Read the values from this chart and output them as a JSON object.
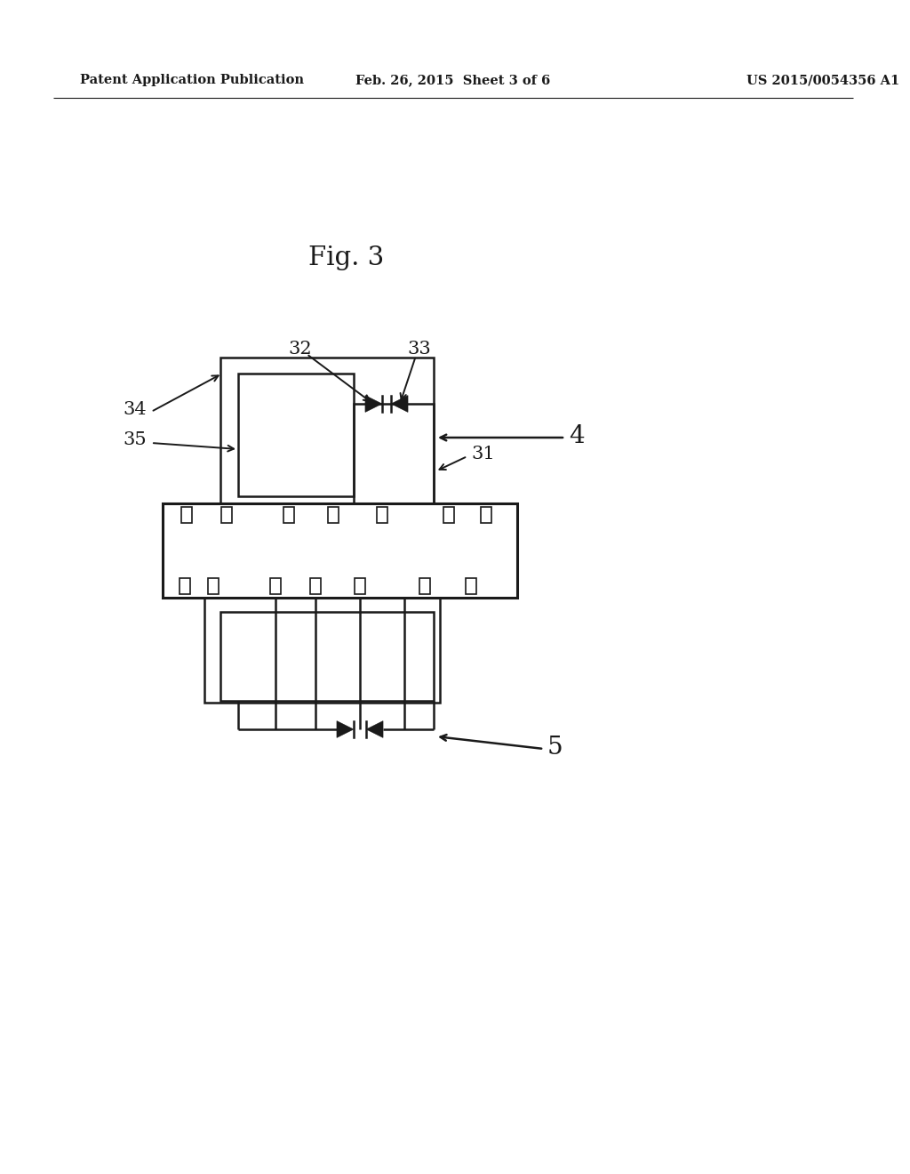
{
  "bg_color": "#ffffff",
  "line_color": "#1a1a1a",
  "header_left": "Patent Application Publication",
  "header_mid": "Feb. 26, 2015  Sheet 3 of 6",
  "header_right": "US 2015/0054356 A1",
  "fig_label": "Fig. 3"
}
